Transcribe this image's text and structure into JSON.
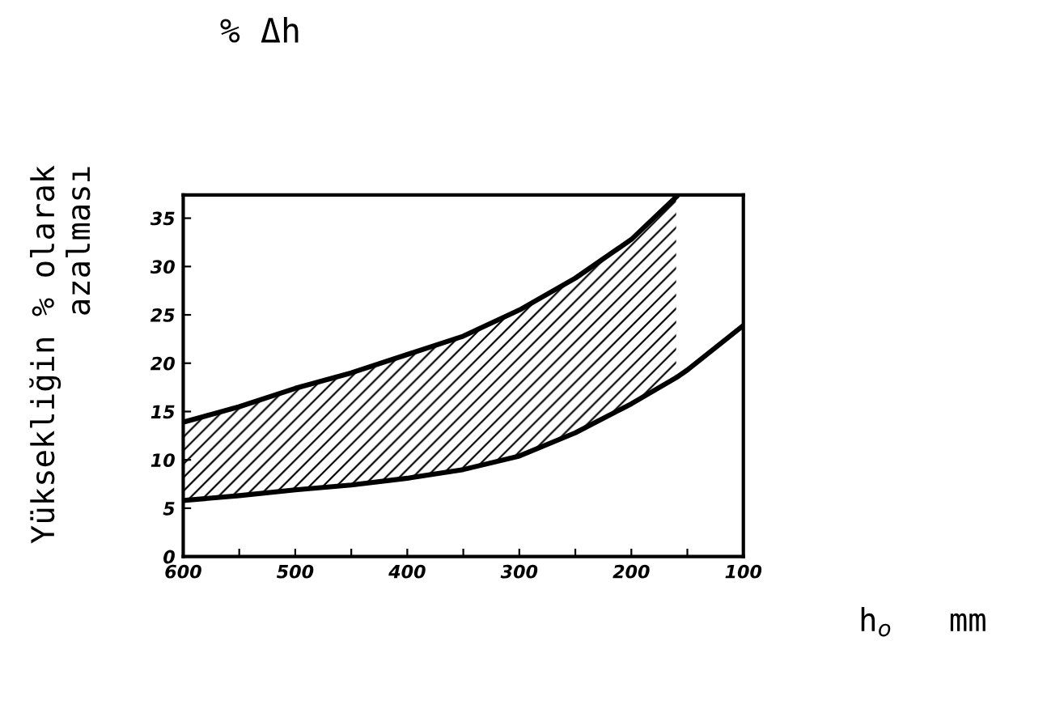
{
  "chart_data": {
    "type": "line",
    "title": "% Δh",
    "xlabel": "h$_{o}$   mm",
    "ylabel": "Yüksekliğin % olarak\nazalması",
    "x": [
      600,
      550,
      500,
      450,
      400,
      350,
      300,
      250,
      200,
      160,
      150,
      100
    ],
    "series": [
      {
        "color": "#000000",
        "values": [
          5.8,
          6.3,
          6.9,
          7.4,
          8.1,
          9.0,
          10.4,
          12.8,
          15.8,
          18.5,
          19.3,
          23.9
        ]
      },
      {
        "type": "area",
        "color": "#000000",
        "x": [
          600,
          550,
          500,
          450,
          400,
          350,
          300,
          250,
          200,
          160
        ],
        "values": [
          13.9,
          15.5,
          17.4,
          19.0,
          20.9,
          22.8,
          25.5,
          28.8,
          32.8,
          37.2
        ]
      }
    ],
    "xlim": [
      600,
      100
    ],
    "ylim": [
      0,
      37.4
    ],
    "xticks": [
      600,
      {
        "value": 550,
        "label": null
      },
      500,
      {
        "value": 450,
        "label": null
      },
      400,
      {
        "value": 350,
        "label": null
      },
      300,
      {
        "value": 250,
        "label": null
      },
      200,
      {
        "value": 150,
        "label": null
      },
      100
    ],
    "yticks": [
      0,
      5,
      10,
      15,
      20,
      25,
      30,
      35
    ],
    "grid": false,
    "legend": false
  }
}
